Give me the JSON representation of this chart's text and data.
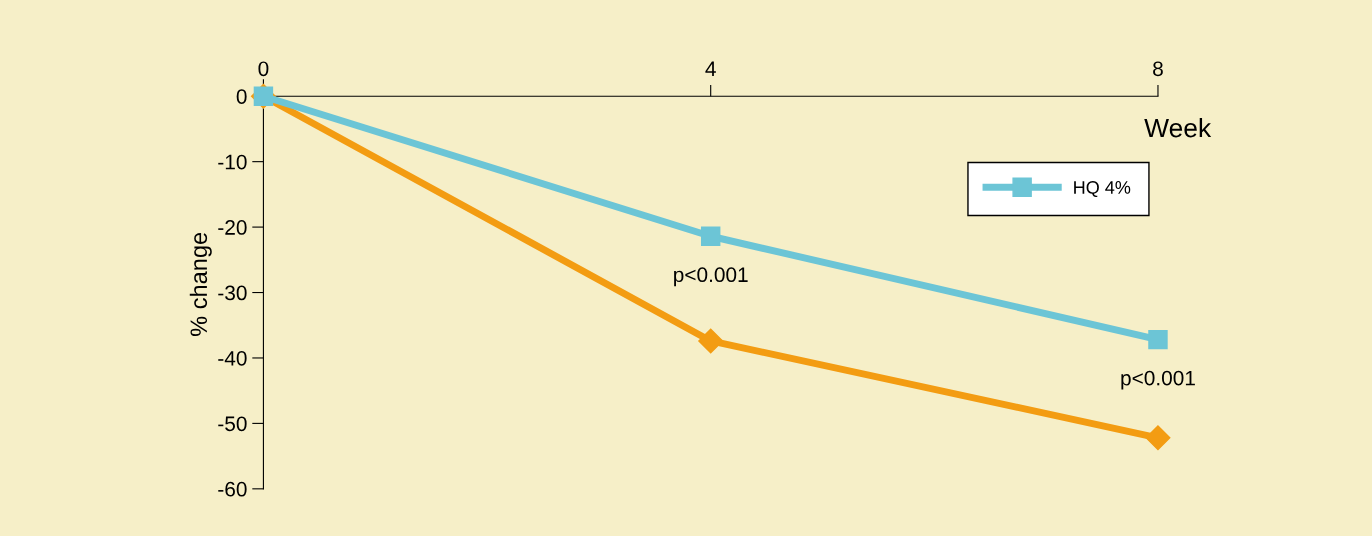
{
  "chart_data": {
    "type": "line",
    "xlabel": "Week",
    "ylabel": "% change",
    "x": [
      0,
      4,
      8
    ],
    "series": [
      {
        "color": "#f39c12",
        "values": [
          0,
          -37.4,
          -52.2
        ],
        "marker": "diamond"
      },
      {
        "name": "HQ 4%",
        "color": "#6cc5d6",
        "values": [
          0,
          -21.4,
          -37.2
        ],
        "marker": "square"
      }
    ],
    "xlim": [
      0,
      8
    ],
    "xticks": [
      0,
      4,
      8
    ],
    "ylim": [
      -60,
      2.5
    ],
    "yticks": [
      0,
      -10,
      -20,
      -30,
      -40,
      -50,
      -60
    ],
    "annotations": [
      {
        "text": "p<0.001",
        "x": 4,
        "y": -21.4
      },
      {
        "text": "p<0.001",
        "x": 8,
        "y": -37.2
      }
    ],
    "legend": "top right",
    "grid": false,
    "line_style": "solid"
  }
}
